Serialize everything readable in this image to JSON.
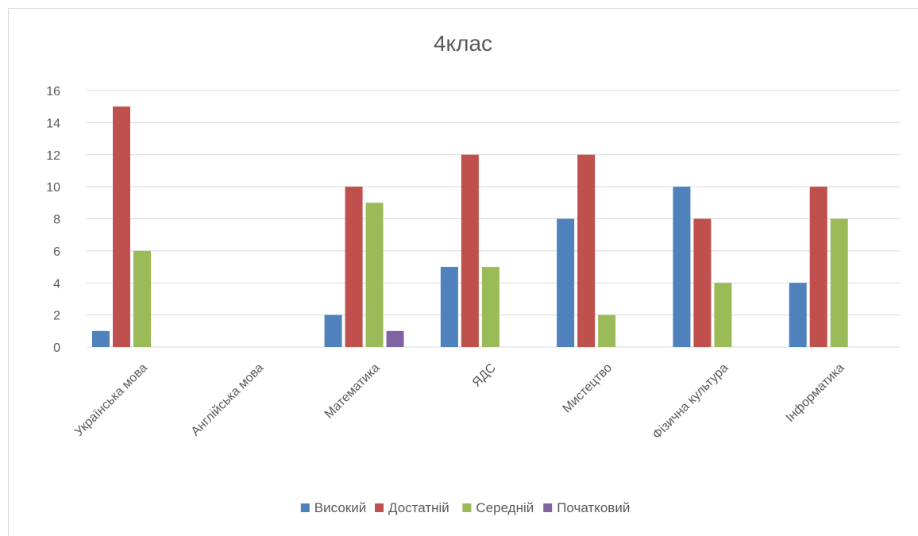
{
  "chart_data": {
    "type": "bar",
    "title": "4клас",
    "categories": [
      "Українська мова",
      "Англійська мова",
      "Математика",
      "ЯДС",
      "Мистецтво",
      "Фізична культура",
      "Інформатика"
    ],
    "series": [
      {
        "name": "Високий",
        "color": "#4f81bd",
        "values": [
          1,
          0,
          2,
          5,
          8,
          10,
          4
        ]
      },
      {
        "name": "Достатній",
        "color": "#c0504d",
        "values": [
          15,
          0,
          10,
          12,
          12,
          8,
          10
        ]
      },
      {
        "name": "Середній",
        "color": "#9bbb59",
        "values": [
          6,
          0,
          9,
          5,
          2,
          4,
          8
        ]
      },
      {
        "name": "Початковий",
        "color": "#8064a2",
        "values": [
          0,
          0,
          1,
          0,
          0,
          0,
          0
        ]
      }
    ],
    "ylim": [
      0,
      16
    ],
    "yticks": [
      0,
      2,
      4,
      6,
      8,
      10,
      12,
      14,
      16
    ],
    "grid": true,
    "legend_position": "bottom",
    "xlabel": "",
    "ylabel": ""
  }
}
